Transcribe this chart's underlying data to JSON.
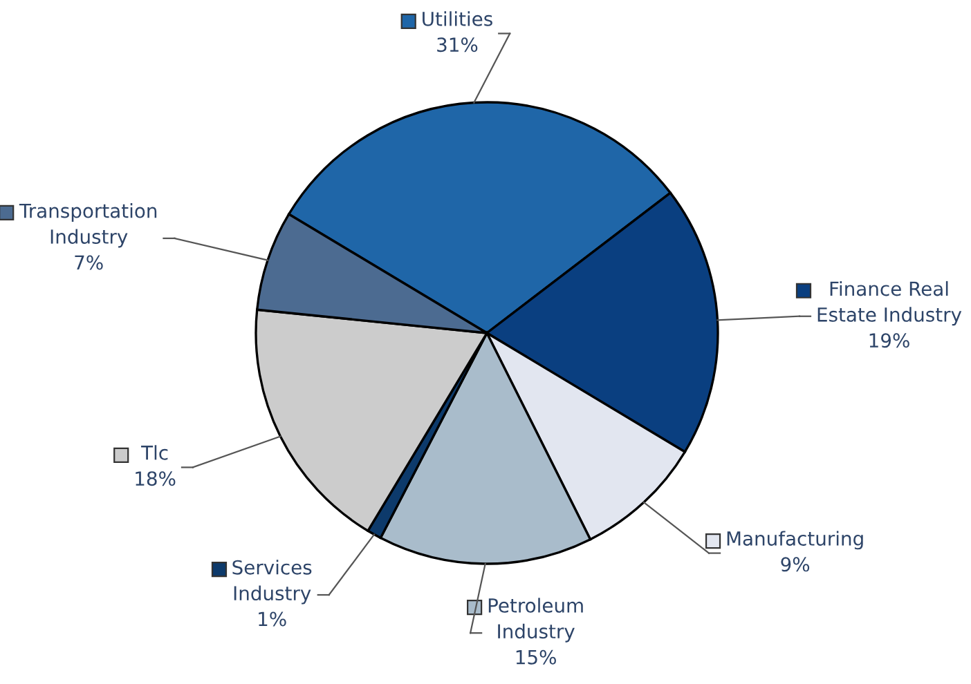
{
  "chart_data": {
    "type": "pie",
    "categories": [
      "Utilities",
      "Finance Real\nEstate Industry",
      "Manufacturing",
      "Petroleum\nIndustry",
      "Services\nIndustry",
      "Tlc",
      "Transportation\nIndustry"
    ],
    "values": [
      31,
      19,
      9,
      15,
      1,
      18,
      7
    ],
    "colors": [
      "#1f66a8",
      "#0a3f80",
      "#e2e6f0",
      "#a9bccb",
      "#0d3a6b",
      "#cccccc",
      "#4c6b91"
    ],
    "value_labels": [
      "31%",
      "19%",
      "9%",
      "15%",
      "1%",
      "18%",
      "7%"
    ],
    "legend": "top left"
  }
}
